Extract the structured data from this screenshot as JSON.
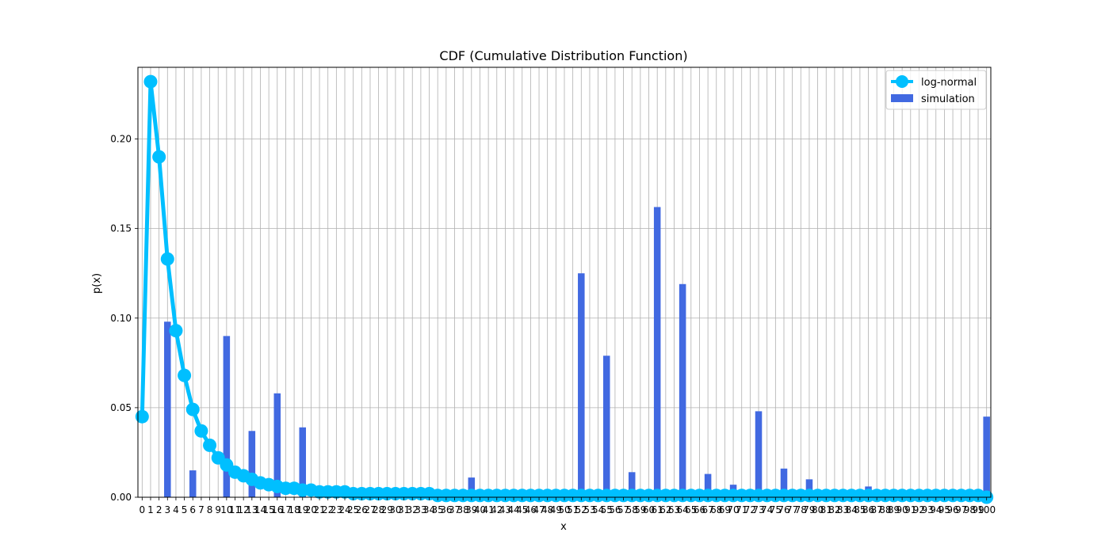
{
  "chart_data": {
    "type": "bar",
    "title": "CDF (Cumulative Distribution Function)",
    "xlabel": "x",
    "ylabel": "p(x)",
    "xlim": [
      -0.5,
      100.5
    ],
    "ylim": [
      0,
      0.24
    ],
    "yticks": [
      "0.00",
      "0.05",
      "0.10",
      "0.15",
      "0.20"
    ],
    "ytick_values": [
      0,
      0.05,
      0.1,
      0.15,
      0.2
    ],
    "grid": true,
    "legend_position": "top-right",
    "series": [
      {
        "name": "log-normal",
        "kind": "line",
        "color": "#00bfff",
        "x": [
          0,
          1,
          2,
          3,
          4,
          5,
          6,
          7,
          8,
          9,
          10,
          11,
          12,
          13,
          14,
          15,
          16,
          17,
          18,
          19,
          20,
          21,
          22,
          23,
          24,
          25,
          26,
          27,
          28,
          29,
          30,
          31,
          32,
          33,
          34,
          35,
          36,
          37,
          38,
          39,
          40,
          41,
          42,
          43,
          44,
          45,
          46,
          47,
          48,
          49,
          50,
          51,
          52,
          53,
          54,
          55,
          56,
          57,
          58,
          59,
          60,
          61,
          62,
          63,
          64,
          65,
          66,
          67,
          68,
          69,
          70,
          71,
          72,
          73,
          74,
          75,
          76,
          77,
          78,
          79,
          80,
          81,
          82,
          83,
          84,
          85,
          86,
          87,
          88,
          89,
          90,
          91,
          92,
          93,
          94,
          95,
          96,
          97,
          98,
          99,
          100
        ],
        "values": [
          0.045,
          0.232,
          0.19,
          0.133,
          0.093,
          0.068,
          0.049,
          0.037,
          0.029,
          0.022,
          0.018,
          0.014,
          0.012,
          0.01,
          0.008,
          0.007,
          0.006,
          0.005,
          0.005,
          0.004,
          0.004,
          0.003,
          0.003,
          0.003,
          0.003,
          0.002,
          0.002,
          0.002,
          0.002,
          0.002,
          0.002,
          0.002,
          0.002,
          0.002,
          0.002,
          0.001,
          0.001,
          0.001,
          0.001,
          0.001,
          0.001,
          0.001,
          0.001,
          0.001,
          0.001,
          0.001,
          0.001,
          0.001,
          0.001,
          0.001,
          0.001,
          0.001,
          0.001,
          0.001,
          0.001,
          0.001,
          0.001,
          0.001,
          0.001,
          0.001,
          0.001,
          0.001,
          0.001,
          0.001,
          0.001,
          0.001,
          0.001,
          0.001,
          0.001,
          0.001,
          0.001,
          0.001,
          0.001,
          0.001,
          0.001,
          0.001,
          0.001,
          0.001,
          0.001,
          0.001,
          0.001,
          0.001,
          0.001,
          0.001,
          0.001,
          0.001,
          0.001,
          0.001,
          0.001,
          0.001,
          0.001,
          0.001,
          0.001,
          0.001,
          0.001,
          0.001,
          0.001,
          0.001,
          0.001,
          0.001,
          0.0
        ]
      },
      {
        "name": "simulation",
        "kind": "bar",
        "color": "#4169e1",
        "x": [
          3,
          6,
          10,
          13,
          16,
          19,
          39,
          52,
          55,
          58,
          61,
          64,
          67,
          70,
          73,
          76,
          79,
          86,
          100
        ],
        "values": [
          0.098,
          0.015,
          0.09,
          0.037,
          0.058,
          0.039,
          0.011,
          0.125,
          0.079,
          0.014,
          0.162,
          0.119,
          0.013,
          0.007,
          0.048,
          0.016,
          0.01,
          0.006,
          0.045
        ]
      }
    ]
  }
}
